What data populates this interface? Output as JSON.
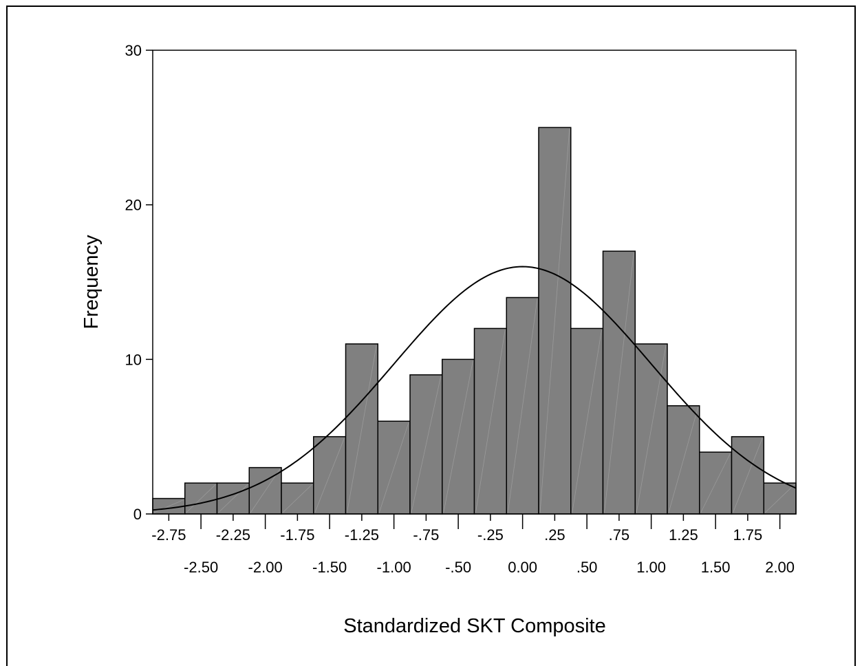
{
  "chart_data": {
    "type": "bar",
    "subtype": "histogram",
    "title": "",
    "xlabel": "Standardized SKT Composite",
    "ylabel": "Frequency",
    "ylim": [
      0,
      30
    ],
    "xlim": [
      -2.875,
      2.125
    ],
    "bin_width": 0.25,
    "bin_centers": [
      -2.75,
      -2.5,
      -2.25,
      -2.0,
      -1.75,
      -1.5,
      -1.25,
      -1.0,
      -0.75,
      -0.5,
      -0.25,
      0.0,
      0.25,
      0.5,
      0.75,
      1.0,
      1.25,
      1.5,
      1.75,
      2.0
    ],
    "values": [
      1,
      2,
      2,
      3,
      2,
      5,
      11,
      6,
      9,
      10,
      12,
      14,
      25,
      12,
      17,
      11,
      7,
      4,
      5,
      2
    ],
    "yticks": [
      "0",
      "10",
      "20",
      "30"
    ],
    "xticks_upper": [
      "-2.75",
      "-2.25",
      "-1.75",
      "-1.25",
      "-.75",
      "-.25",
      ".25",
      ".75",
      "1.25",
      "1.75"
    ],
    "xticks_lower": [
      "-2.50",
      "-2.00",
      "-1.50",
      "-1.00",
      "-.50",
      "0.00",
      ".50",
      "1.00",
      "1.50",
      "2.00"
    ],
    "normal_curve": {
      "peak_frequency": 16.0,
      "peak_x": 0.0,
      "sd": 1.0
    },
    "bar_color": "#808080",
    "grid": false,
    "legend": "none"
  }
}
